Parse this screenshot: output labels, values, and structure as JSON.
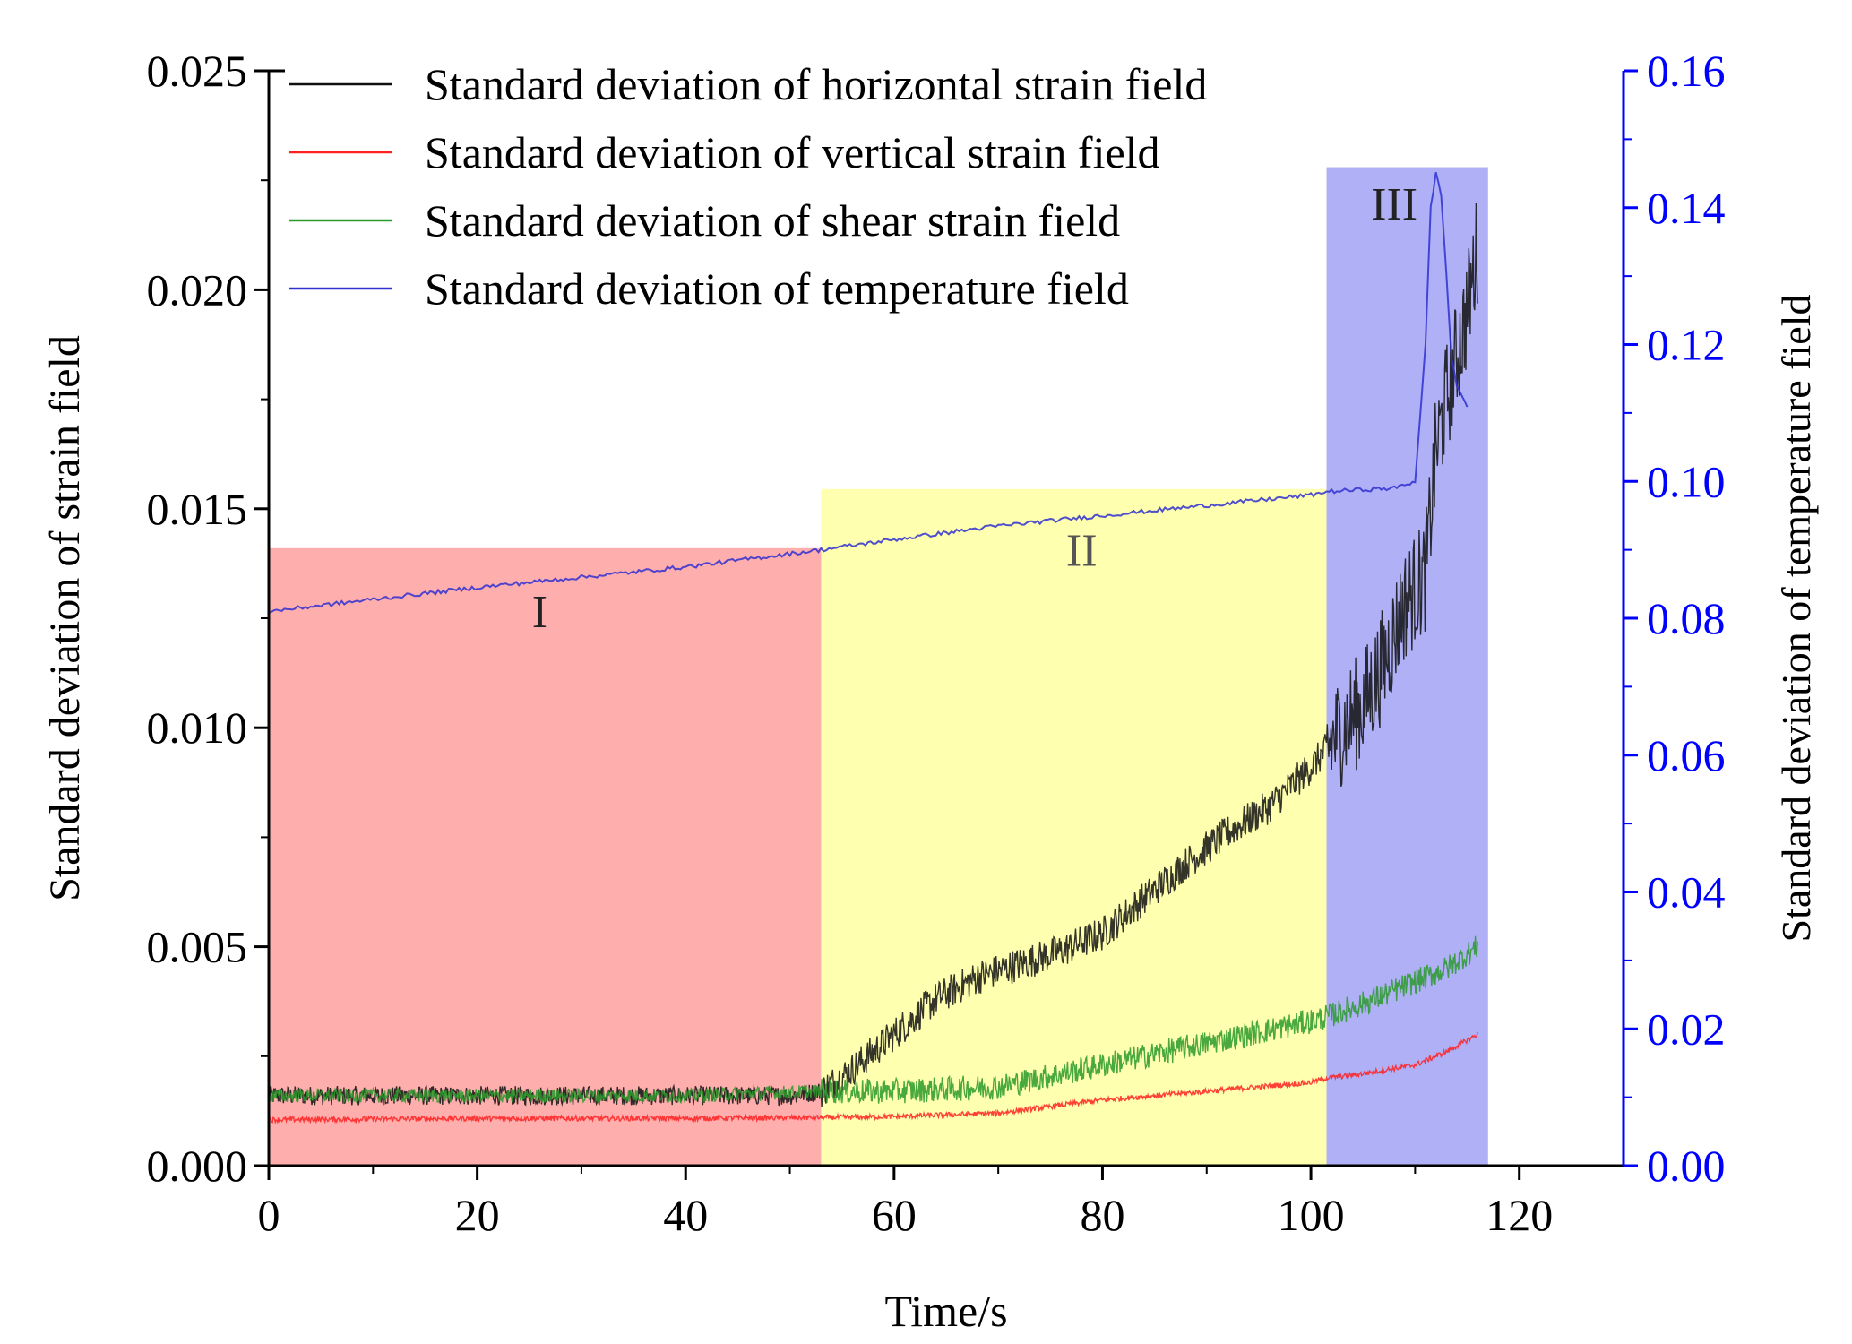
{
  "chart_data": {
    "type": "line",
    "title": "",
    "xlabel": "Time/s",
    "ylabel": "Standard deviation of strain field",
    "y2label": "Standard deviation of temperature field",
    "xlim": [
      0,
      130
    ],
    "ylim": [
      0,
      0.025
    ],
    "y2lim": [
      0,
      0.16
    ],
    "xticks": [
      0,
      20,
      40,
      60,
      80,
      100,
      120
    ],
    "xtick_labels": [
      "0",
      "20",
      "40",
      "60",
      "80",
      "100",
      "120"
    ],
    "yticks": [
      0,
      0.005,
      0.01,
      0.015,
      0.02,
      0.025
    ],
    "ytick_labels": [
      "0.000",
      "0.005",
      "0.010",
      "0.015",
      "0.020",
      "0.025"
    ],
    "y2ticks": [
      0,
      0.02,
      0.04,
      0.06,
      0.08,
      0.1,
      0.12,
      0.14,
      0.16
    ],
    "y2tick_labels": [
      "0.00",
      "0.02",
      "0.04",
      "0.06",
      "0.08",
      "0.10",
      "0.12",
      "0.14",
      "0.16"
    ],
    "grid": false,
    "legend_position": "top-left",
    "legend": [
      "Standard deviation of horizontal strain field",
      "Standard deviation of vertical strain field",
      "Standard deviation of shear strain field",
      "Standard deviation of temperature field"
    ],
    "regions": [
      {
        "label": "I",
        "x_start": 0,
        "x_end": 53,
        "y_top": 0.0141,
        "color": "#ffaeae"
      },
      {
        "label": "II",
        "x_start": 53,
        "x_end": 101.5,
        "y_top": 0.01545,
        "color": "#ffffb0"
      },
      {
        "label": "III",
        "x_start": 101.5,
        "x_end": 117,
        "y_top": 0.0228,
        "color": "#b0b0f7"
      }
    ],
    "region_label_positions": [
      {
        "label": "I",
        "x": 26,
        "y": 0.0123
      },
      {
        "label": "II",
        "x": 78,
        "y": 0.0137
      },
      {
        "label": "III",
        "x": 108,
        "y": 0.0216
      }
    ],
    "series": [
      {
        "name": "Standard deviation of horizontal strain field",
        "axis": "left",
        "color": "#111111",
        "noise": 0.00022,
        "x": [
          0,
          10,
          20,
          30,
          40,
          50,
          53,
          56,
          60,
          64,
          68,
          72,
          76,
          80,
          84,
          88,
          92,
          96,
          100,
          101.5,
          103,
          105,
          107,
          109,
          111,
          112,
          113,
          114,
          115,
          116
        ],
        "y": [
          0.0016,
          0.0016,
          0.0016,
          0.0016,
          0.0016,
          0.0016,
          0.0017,
          0.0022,
          0.003,
          0.0038,
          0.0043,
          0.0046,
          0.0049,
          0.0053,
          0.0061,
          0.0069,
          0.0076,
          0.0082,
          0.0091,
          0.0095,
          0.01,
          0.0105,
          0.0115,
          0.0128,
          0.0135,
          0.0163,
          0.0175,
          0.0185,
          0.0195,
          0.021
        ]
      },
      {
        "name": "Standard deviation of vertical strain field",
        "axis": "left",
        "color": "#ff2020",
        "noise": 6e-05,
        "x": [
          0,
          20,
          40,
          53,
          60,
          70,
          80,
          90,
          100,
          101.5,
          105,
          110,
          113,
          116
        ],
        "y": [
          0.00105,
          0.00108,
          0.00108,
          0.0011,
          0.00112,
          0.0012,
          0.0015,
          0.0017,
          0.0019,
          0.002,
          0.0021,
          0.0023,
          0.0026,
          0.003
        ]
      },
      {
        "name": "Standard deviation of shear strain field",
        "axis": "left",
        "color": "#2a9a2a",
        "noise": 0.00016,
        "x": [
          0,
          20,
          40,
          53,
          60,
          70,
          80,
          90,
          100,
          101.5,
          105,
          110,
          113,
          116
        ],
        "y": [
          0.0016,
          0.0016,
          0.0016,
          0.0017,
          0.0017,
          0.0018,
          0.0023,
          0.0028,
          0.0033,
          0.0034,
          0.0037,
          0.0042,
          0.0045,
          0.005
        ]
      },
      {
        "name": "Standard deviation of temperature field",
        "axis": "right",
        "color": "#3030d0",
        "noise": 0.0003,
        "x": [
          0,
          20,
          40,
          53,
          60,
          70,
          80,
          90,
          100,
          101.5,
          105,
          108,
          110,
          111,
          111.5,
          112,
          112.5,
          113,
          113.5,
          114,
          115
        ],
        "y": [
          0.081,
          0.0845,
          0.0875,
          0.09,
          0.0915,
          0.0935,
          0.095,
          0.0965,
          0.098,
          0.0985,
          0.0988,
          0.099,
          0.1,
          0.12,
          0.14,
          0.145,
          0.142,
          0.13,
          0.118,
          0.114,
          0.111
        ]
      }
    ]
  }
}
